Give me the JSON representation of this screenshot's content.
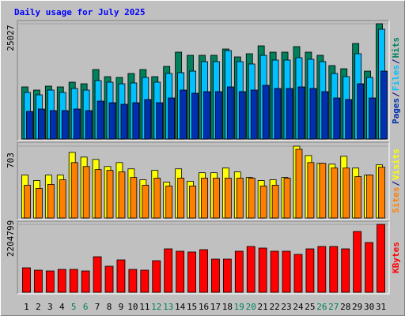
{
  "chart_data": [
    {
      "type": "bar",
      "title": "Daily usage for July 2025",
      "separator": "/",
      "ylim": [
        0,
        25027
      ],
      "yticks": [
        25027
      ],
      "series": [
        {
          "name": "Hits",
          "color": "#00805c",
          "values": [
            11312,
            10627,
            11484,
            11312,
            12341,
            11998,
            15083,
            13541,
            13369,
            14226,
            15083,
            13541,
            15769,
            18854,
            18168,
            18168,
            18168,
            19540,
            17826,
            18511,
            20225,
            18854,
            18854,
            20054,
            18854,
            18168,
            15940,
            15255,
            20739,
            14740,
            25027
          ]
        },
        {
          "name": "Files",
          "color": "#00c0ff",
          "values": [
            10113,
            9598,
            10627,
            10113,
            10970,
            10627,
            12684,
            12341,
            11998,
            12170,
            13369,
            12341,
            14226,
            14398,
            14740,
            16797,
            16797,
            19197,
            16797,
            16283,
            18168,
            17140,
            17140,
            17654,
            17311,
            16797,
            14226,
            13541,
            18511,
            13369,
            23825
          ]
        },
        {
          "name": "Pages",
          "color": "#0030b0",
          "values": [
            5999,
            6513,
            6170,
            6170,
            6513,
            6170,
            8227,
            7884,
            7542,
            7884,
            8570,
            7884,
            8913,
            10627,
            9941,
            10284,
            10284,
            11312,
            10284,
            10627,
            11655,
            10970,
            10970,
            11312,
            10970,
            10284,
            8913,
            8570,
            11998,
            8913,
            14740
          ]
        }
      ]
    },
    {
      "type": "bar",
      "separator": "/",
      "ylim": [
        0,
        703
      ],
      "yticks": [
        703
      ],
      "series": [
        {
          "name": "Visits",
          "color": "#ffff00",
          "values": [
            420,
            367,
            420,
            420,
            642,
            596,
            573,
            504,
            542,
            481,
            374,
            466,
            351,
            481,
            359,
            443,
            443,
            489,
            451,
            397,
            367,
            374,
            397,
            703,
            611,
            535,
            527,
            604,
            489,
            420,
            520
          ]
        },
        {
          "name": "Sites",
          "color": "#ff8000",
          "values": [
            321,
            290,
            329,
            374,
            542,
            504,
            474,
            466,
            451,
            397,
            321,
            390,
            313,
            390,
            313,
            390,
            390,
            390,
            390,
            390,
            313,
            321,
            390,
            672,
            542,
            535,
            489,
            489,
            405,
            420,
            497
          ]
        }
      ]
    },
    {
      "type": "bar",
      "ylim": [
        0,
        2204799
      ],
      "yticks": [
        2204799
      ],
      "categories": [
        "1",
        "2",
        "3",
        "4",
        "5",
        "6",
        "7",
        "8",
        "9",
        "10",
        "11",
        "12",
        "13",
        "14",
        "15",
        "16",
        "17",
        "18",
        "19",
        "20",
        "21",
        "22",
        "23",
        "24",
        "25",
        "26",
        "27",
        "28",
        "29",
        "30",
        "31"
      ],
      "category_colors": [
        "#000000",
        "#000000",
        "#000000",
        "#000000",
        "#00805c",
        "#00805c",
        "#000000",
        "#000000",
        "#000000",
        "#000000",
        "#000000",
        "#00805c",
        "#00805c",
        "#000000",
        "#000000",
        "#000000",
        "#000000",
        "#000000",
        "#00805c",
        "#00805c",
        "#000000",
        "#000000",
        "#000000",
        "#000000",
        "#000000",
        "#00805c",
        "#00805c",
        "#000000",
        "#000000",
        "#000000",
        "#000000"
      ],
      "series": [
        {
          "name": "KBytes",
          "color": "#ff0000",
          "values": [
            794747,
            717836,
            692199,
            743473,
            743473,
            692199,
            1153665,
            846021,
            1051117,
            743473,
            717836,
            1025480,
            1410035,
            1333124,
            1307487,
            1384398,
            1076754,
            1076754,
            1333124,
            1486946,
            1435672,
            1333124,
            1333124,
            1230576,
            1410035,
            1486946,
            1486946,
            1410035,
            1974049,
            1615131,
            2204799
          ]
        }
      ]
    }
  ]
}
